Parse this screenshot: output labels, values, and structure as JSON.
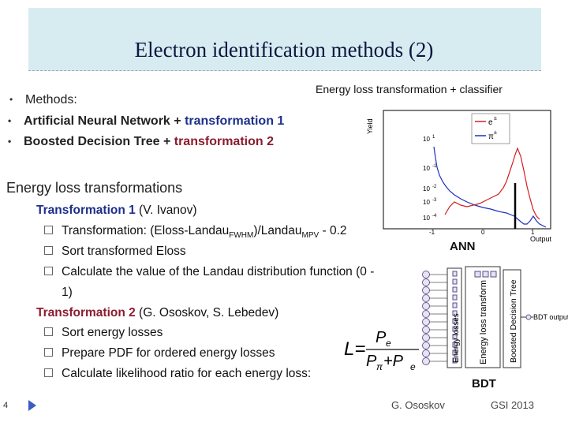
{
  "slide": {
    "title": "Electron identification methods (2)",
    "subhead": "Energy loss transformation + classifier",
    "methods_label": "Methods:",
    "ann_a": "Artificial Neural Network",
    "plus1": " + ",
    "ann_b": "transformation 1",
    "bdt_a": "Boosted Decision Tree",
    "plus2": " + ",
    "bdt_b": "transformation 2",
    "elt_heading": "Energy loss transformations",
    "t1_label": "Transformation 1",
    "t1_author": " (V. Ivanov)",
    "t1_item1": "Transformation: (Eloss-Landau",
    "t1_item1_sub1": "FWHM",
    "t1_item1_mid": ")/Landau",
    "t1_item1_sub2": "MPV",
    "t1_item1_end": " - 0.2",
    "t1_item2": "Sort transformed Eloss",
    "t1_item3": "Calculate the value of the Landau distribution function (0 -",
    "t1_item3_cont": "1)",
    "t2_label": "Transformation 2",
    "t2_author": " (G. Ososkov, S. Lebedev)",
    "t2_item1": "Sort energy losses",
    "t2_item2": "Prepare PDF for ordered energy losses",
    "t2_item3": "Calculate likelihood ratio for each energy loss:",
    "formula_L": "L=",
    "formula_num": "P",
    "formula_num_sub": "e",
    "formula_den": "P",
    "formula_den_sub": "π",
    "formula_plus": "+P",
    "formula_den_sub2": "e",
    "label_ann": "ANN",
    "label_bdt": "BDT",
    "page_number": "4",
    "author": "G. Ososkov",
    "conference": "GSI 2013"
  },
  "plot": {
    "ylabel": "Yield",
    "xlabel": "Output",
    "yticks": [
      "10",
      "10",
      "10",
      "10",
      "10"
    ],
    "yexp": [
      "1",
      "-1",
      "-2",
      "-3",
      "-4"
    ],
    "xticks": [
      "-1",
      "0",
      "1"
    ],
    "legend_e": "e",
    "legend_e_sup": "±",
    "legend_pi": "π",
    "legend_pi_sup": "±",
    "color_e": "#d02020",
    "color_pi": "#2030c0"
  },
  "diagram": {
    "box1": "Energy losses",
    "box2": "Energy loss transform",
    "box3": "Boosted Decision Tree",
    "output": "BDT output"
  }
}
